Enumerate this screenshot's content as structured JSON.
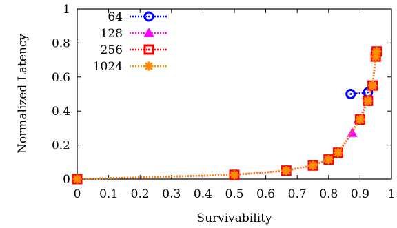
{
  "chart_data": {
    "type": "line",
    "xlabel": "Survivability",
    "ylabel": "Normalized Latency",
    "xlim": [
      0,
      1
    ],
    "ylim": [
      0,
      1
    ],
    "xticks": [
      "0",
      "0.1",
      "0.2",
      "0.3",
      "0.4",
      "0.5",
      "0.6",
      "0.7",
      "0.8",
      "0.9",
      "1"
    ],
    "yticks": [
      "0",
      "0.2",
      "0.4",
      "0.6",
      "0.8",
      "1"
    ],
    "legend_position": "top-left",
    "grid": false,
    "series": [
      {
        "name": "64",
        "color": "#0000ff",
        "marker": "circle",
        "points": [
          [
            0.87,
            0.5
          ],
          [
            0.925,
            0.51
          ]
        ]
      },
      {
        "name": "128",
        "color": "#ff00ff",
        "marker": "triangle",
        "points": [
          [
            0,
            0
          ],
          [
            0.5,
            0.025
          ],
          [
            0.665,
            0.05
          ],
          [
            0.75,
            0.08
          ],
          [
            0.8,
            0.115
          ],
          [
            0.83,
            0.155
          ],
          [
            0.875,
            0.27
          ],
          [
            0.895,
            0.35
          ],
          [
            0.925,
            0.46
          ],
          [
            0.94,
            0.55
          ],
          [
            0.95,
            0.72
          ],
          [
            0.953,
            0.75
          ]
        ]
      },
      {
        "name": "256",
        "color": "#ff0000",
        "marker": "square",
        "points": [
          [
            0,
            0
          ],
          [
            0.5,
            0.025
          ],
          [
            0.665,
            0.05
          ],
          [
            0.75,
            0.08
          ],
          [
            0.8,
            0.115
          ],
          [
            0.83,
            0.155
          ],
          [
            0.9,
            0.35
          ],
          [
            0.925,
            0.46
          ],
          [
            0.94,
            0.55
          ],
          [
            0.95,
            0.72
          ],
          [
            0.953,
            0.75
          ]
        ]
      },
      {
        "name": "1024",
        "color": "#ff8c00",
        "marker": "asterisk",
        "points": [
          [
            0,
            0
          ],
          [
            0.5,
            0.025
          ],
          [
            0.665,
            0.05
          ],
          [
            0.75,
            0.08
          ],
          [
            0.8,
            0.115
          ],
          [
            0.83,
            0.155
          ],
          [
            0.9,
            0.35
          ],
          [
            0.925,
            0.46
          ],
          [
            0.94,
            0.55
          ],
          [
            0.95,
            0.72
          ],
          [
            0.953,
            0.75
          ]
        ]
      }
    ]
  }
}
